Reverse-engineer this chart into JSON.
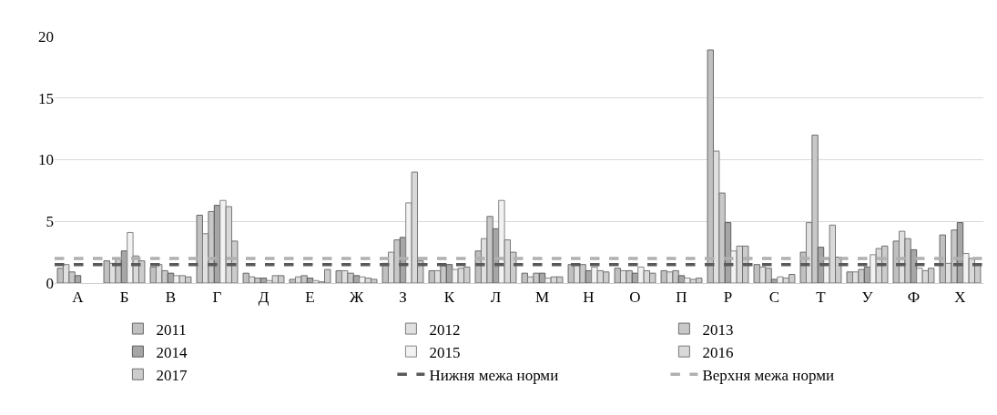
{
  "chart_data": {
    "type": "bar",
    "categories": [
      "А",
      "Б",
      "В",
      "Г",
      "Д",
      "Е",
      "Ж",
      "З",
      "К",
      "Л",
      "М",
      "Н",
      "О",
      "П",
      "Р",
      "С",
      "Т",
      "У",
      "Ф",
      "Х"
    ],
    "series": [
      {
        "name": "2011",
        "color": "#c0c0c0",
        "values": [
          1.2,
          1.8,
          1.3,
          5.5,
          0.8,
          0.3,
          1.0,
          1.6,
          1.0,
          2.6,
          0.8,
          1.5,
          1.2,
          1.0,
          18.9,
          1.5,
          2.5,
          0.9,
          3.4,
          3.9
        ]
      },
      {
        "name": "2012",
        "color": "#e0e0e0",
        "values": [
          1.5,
          1.6,
          1.5,
          4.0,
          0.5,
          0.5,
          1.0,
          2.5,
          1.0,
          3.6,
          0.5,
          1.5,
          1.0,
          0.9,
          10.7,
          1.3,
          4.9,
          0.9,
          4.2,
          1.6
        ]
      },
      {
        "name": "2013",
        "color": "#c8c8c8",
        "values": [
          0.9,
          2.0,
          1.0,
          5.8,
          0.4,
          0.6,
          0.8,
          3.5,
          1.4,
          5.4,
          0.8,
          1.5,
          1.0,
          1.0,
          7.3,
          1.2,
          12.0,
          1.1,
          3.6,
          4.3
        ]
      },
      {
        "name": "2014",
        "color": "#a6a6a6",
        "values": [
          0.6,
          2.6,
          0.8,
          6.3,
          0.4,
          0.4,
          0.6,
          3.7,
          1.5,
          4.4,
          0.8,
          1.0,
          0.8,
          0.6,
          4.9,
          0.3,
          2.9,
          1.3,
          2.7,
          4.9
        ]
      },
      {
        "name": "2015",
        "color": "#f2f2f2",
        "values": [
          null,
          4.1,
          0.6,
          6.7,
          0.2,
          0.2,
          0.5,
          6.5,
          1.1,
          6.7,
          0.4,
          1.3,
          1.3,
          0.4,
          2.6,
          0.5,
          2.0,
          2.3,
          1.2,
          2.4
        ]
      },
      {
        "name": "2016",
        "color": "#d9d9d9",
        "values": [
          null,
          2.2,
          0.6,
          6.2,
          0.6,
          0.1,
          0.4,
          9.0,
          1.2,
          3.5,
          0.5,
          1.0,
          1.0,
          0.3,
          3.0,
          0.4,
          4.7,
          2.8,
          1.0,
          2.0
        ]
      },
      {
        "name": "2017",
        "color": "#cccccc",
        "values": [
          null,
          1.8,
          0.5,
          3.4,
          0.6,
          1.1,
          0.3,
          1.8,
          1.3,
          2.5,
          0.5,
          0.9,
          0.8,
          0.4,
          3.0,
          0.7,
          2.1,
          3.0,
          1.2,
          1.5
        ]
      }
    ],
    "ylim": [
      0,
      20
    ],
    "yticks": [
      0,
      5,
      10,
      15,
      20
    ],
    "grid": "y",
    "legend": "bottom",
    "ref_lines": [
      {
        "axis": "y",
        "value": 1.5,
        "label": "Нижня межа норми",
        "color": "#595959",
        "line_style": "dashed"
      },
      {
        "axis": "y",
        "value": 2.0,
        "label": "Верхня межа норми",
        "color": "#b0b0b0",
        "line_style": "dashed"
      }
    ]
  }
}
